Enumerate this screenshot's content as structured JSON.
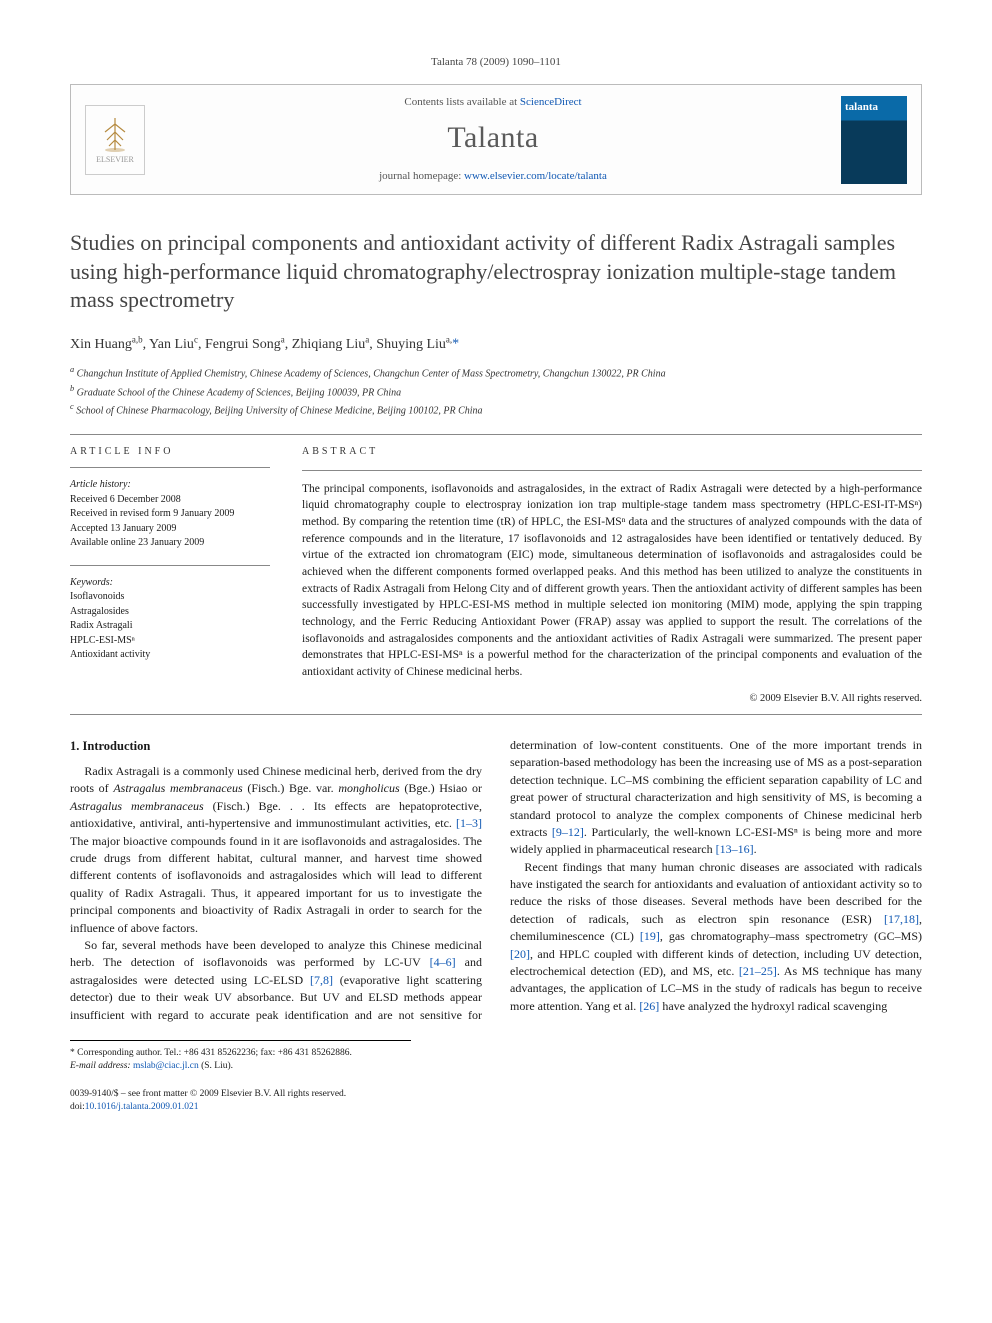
{
  "running_head": "Talanta 78 (2009) 1090–1101",
  "header": {
    "contents_prefix": "Contents lists available at ",
    "contents_link": "ScienceDirect",
    "journal": "Talanta",
    "homepage_prefix": "journal homepage: ",
    "homepage_link": "www.elsevier.com/locate/talanta",
    "elsevier_label": "ELSEVIER",
    "cover_title": "talanta"
  },
  "title": "Studies on principal components and antioxidant activity of different Radix Astragali samples using high-performance liquid chromatography/electrospray ionization multiple-stage tandem mass spectrometry",
  "authors_html": "Xin Huang<sup>a,b</sup>, Yan Liu<sup>c</sup>, Fengrui Song<sup>a</sup>, Zhiqiang Liu<sup>a</sup>, Shuying Liu<sup>a,</sup>",
  "author_star": "*",
  "affiliations": [
    "a Changchun Institute of Applied Chemistry, Chinese Academy of Sciences, Changchun Center of Mass Spectrometry, Changchun 130022, PR China",
    "b Graduate School of the Chinese Academy of Sciences, Beijing 100039, PR China",
    "c School of Chinese Pharmacology, Beijing University of Chinese Medicine, Beijing 100102, PR China"
  ],
  "info": {
    "head": "ARTICLE INFO",
    "history_label": "Article history:",
    "history": [
      "Received 6 December 2008",
      "Received in revised form 9 January 2009",
      "Accepted 13 January 2009",
      "Available online 23 January 2009"
    ],
    "keywords_label": "Keywords:",
    "keywords": [
      "Isoflavonoids",
      "Astragalosides",
      "Radix Astragali",
      "HPLC-ESI-MSⁿ",
      "Antioxidant activity"
    ]
  },
  "abstract": {
    "head": "ABSTRACT",
    "text": "The principal components, isoflavonoids and astragalosides, in the extract of Radix Astragali were detected by a high-performance liquid chromatography couple to electrospray ionization ion trap multiple-stage tandem mass spectrometry (HPLC-ESI-IT-MSⁿ) method. By comparing the retention time (tR) of HPLC, the ESI-MSⁿ data and the structures of analyzed compounds with the data of reference compounds and in the literature, 17 isoflavonoids and 12 astragalosides have been identified or tentatively deduced. By virtue of the extracted ion chromatogram (EIC) mode, simultaneous determination of isoflavonoids and astragalosides could be achieved when the different components formed overlapped peaks. And this method has been utilized to analyze the constituents in extracts of Radix Astragali from Helong City and of different growth years. Then the antioxidant activity of different samples has been successfully investigated by HPLC-ESI-MS method in multiple selected ion monitoring (MIM) mode, applying the spin trapping technology, and the Ferric Reducing Antioxidant Power (FRAP) assay was applied to support the result. The correlations of the isoflavonoids and astragalosides components and the antioxidant activities of Radix Astragali were summarized. The present paper demonstrates that HPLC-ESI-MSⁿ is a powerful method for the characterization of the principal components and evaluation of the antioxidant activity of Chinese medicinal herbs.",
    "copyright": "© 2009 Elsevier B.V. All rights reserved."
  },
  "body": {
    "section_head": "1. Introduction",
    "p1a": "Radix Astragali is a commonly used Chinese medicinal herb, derived from the dry roots of ",
    "p1_em1": "Astragalus membranaceus",
    "p1b": " (Fisch.) Bge. var. ",
    "p1_em2": "mongholicus",
    "p1c": " (Bge.) Hsiao or ",
    "p1_em3": "Astragalus membranaceus",
    "p1d": " (Fisch.) Bge. . . Its effects are hepatoprotective, antioxidative, antiviral, anti-hypertensive and immunostimulant activities, etc. ",
    "p1_ref1": "[1–3]",
    "p1e": " The major bioactive compounds found in it are isoflavonoids and astragalosides. The crude drugs from different habitat, cultural manner, and harvest time showed different contents of isoflavonoids and astragalosides which will lead to different quality of Radix Astragali. Thus, it appeared important for us to investigate the principal components and bioactivity of Radix Astragali in order to search for the influence of above factors.",
    "p2a": "So far, several methods have been developed to analyze this Chinese medicinal herb. The detection of isoflavonoids was performed by LC-UV ",
    "p2_ref1": "[4–6]",
    "p2b": " and astragalosides were detected using LC-ELSD ",
    "p2_ref2": "[7,8]",
    "p2c": " (evaporative light scattering detector) due to their weak UV absorbance. But UV and ELSD methods appear insufficient with regard to accurate peak identification and are not sensitive for determination of low-content constituents. One of the more important trends in separation-based methodology has been the increasing use of MS as a post-separation detection technique. LC–MS combining the efficient separation capability of LC and great power of structural characterization and high sensitivity of MS, is becoming a standard protocol to analyze the complex components of Chinese medicinal herb extracts ",
    "p2_ref3": "[9–12]",
    "p2d": ". Particularly, the well-known LC-ESI-MSⁿ is being more and more widely applied in pharmaceutical research ",
    "p2_ref4": "[13–16]",
    "p2e": ".",
    "p3a": "Recent findings that many human chronic diseases are associated with radicals have instigated the search for antioxidants and evaluation of antioxidant activity so to reduce the risks of those diseases. Several methods have been described for the detection of radicals, such as electron spin resonance (ESR) ",
    "p3_ref1": "[17,18]",
    "p3b": ", chemiluminescence (CL) ",
    "p3_ref2": "[19]",
    "p3c": ", gas chromatography–mass spectrometry (GC–MS) ",
    "p3_ref3": "[20]",
    "p3d": ", and HPLC coupled with different kinds of detection, including UV detection, electrochemical detection (ED), and MS, etc. ",
    "p3_ref4": "[21–25]",
    "p3e": ". As MS technique has many advantages, the application of LC–MS in the study of radicals has begun to receive more attention. Yang et al. ",
    "p3_ref5": "[26]",
    "p3f": " have analyzed the hydroxyl radical scavenging"
  },
  "footnote": {
    "corr": "* Corresponding author. Tel.: +86 431 85262236; fax: +86 431 85262886.",
    "email_label": "E-mail address:",
    "email": "mslab@ciac.jl.cn",
    "email_tail": " (S. Liu)."
  },
  "footer": {
    "left1": "0039-9140/$ – see front matter © 2009 Elsevier B.V. All rights reserved.",
    "left2_prefix": "doi:",
    "left2_link": "10.1016/j.talanta.2009.01.021"
  }
}
